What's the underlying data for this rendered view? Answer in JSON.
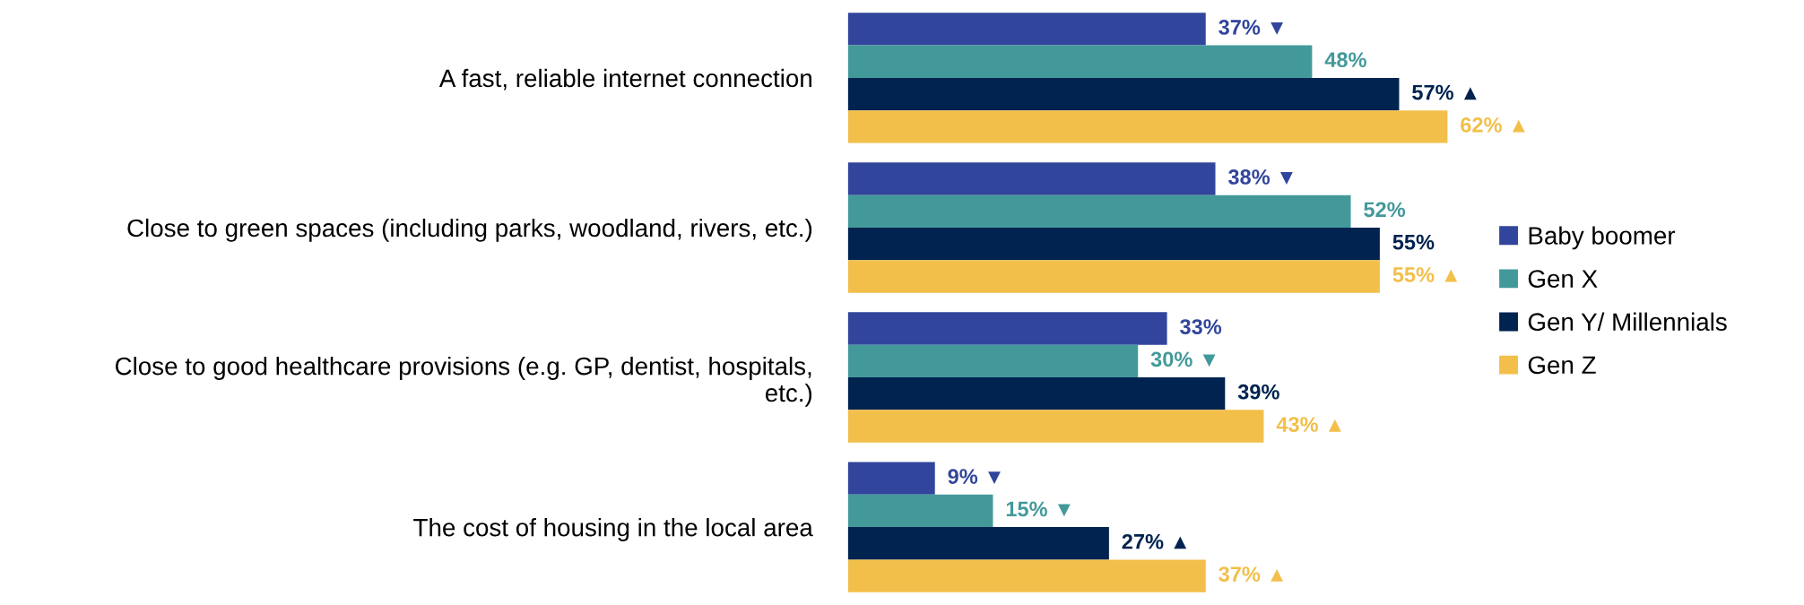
{
  "chart_data": {
    "type": "bar",
    "orientation": "horizontal",
    "categories": [
      "A fast, reliable internet connection",
      "Close to green spaces (including parks, woodland, rivers, etc.)",
      "Close to good healthcare provisions (e.g. GP, dentist, hospitals,\netc.)",
      "The cost of housing in the local area"
    ],
    "series": [
      {
        "name": "Baby boomer",
        "color": "#31459c",
        "values": [
          37,
          38,
          33,
          9
        ],
        "value_labels": [
          "37% ▼",
          "38% ▼",
          "33%",
          "9% ▼"
        ]
      },
      {
        "name": "Gen X",
        "color": "#43999a",
        "values": [
          48,
          52,
          30,
          15
        ],
        "value_labels": [
          "48%",
          "52%",
          "30% ▼",
          "15% ▼"
        ]
      },
      {
        "name": "Gen Y/ Millennials",
        "color": "#00234f",
        "values": [
          57,
          55,
          39,
          27
        ],
        "value_labels": [
          "57% ▲",
          "55%",
          "39%",
          "27% ▲"
        ]
      },
      {
        "name": "Gen Z",
        "color": "#f2bf4a",
        "values": [
          62,
          55,
          43,
          37
        ],
        "value_labels": [
          "62% ▲",
          "55% ▲",
          "43% ▲",
          "37% ▲"
        ]
      }
    ],
    "tick_labels": "y",
    "legend": "right",
    "grid": false
  }
}
